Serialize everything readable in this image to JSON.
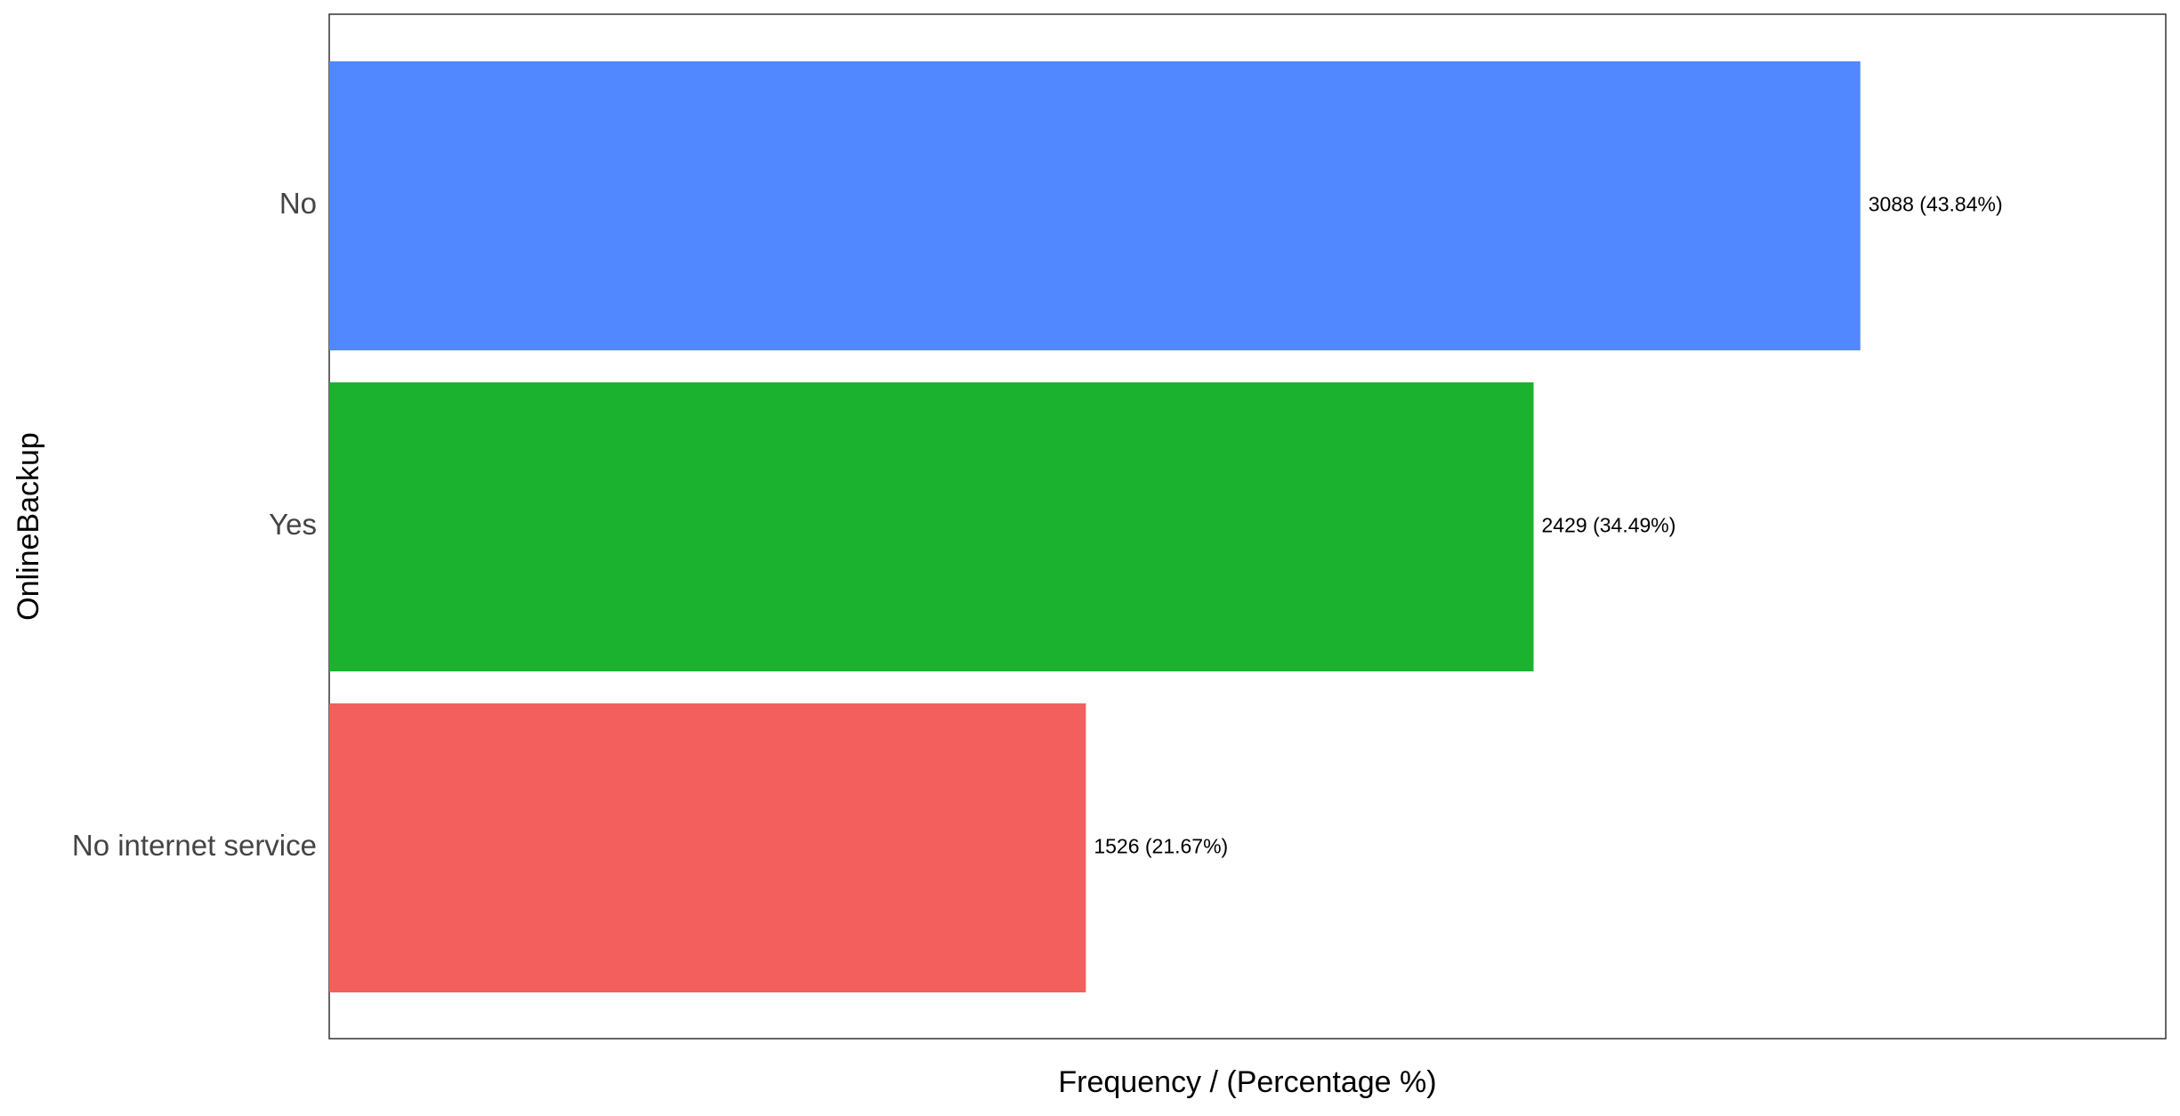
{
  "chart_data": {
    "type": "bar",
    "orientation": "horizontal",
    "xlabel": "Frequency / (Percentage %)",
    "ylabel": "OnlineBackup",
    "categories": [
      "No",
      "Yes",
      "No internet service"
    ],
    "values": [
      3088,
      2429,
      1526
    ],
    "data_labels": [
      "3088 (43.84%)",
      "2429 (34.49%)",
      "1526 (21.67%)"
    ],
    "colors": [
      "#5288FF",
      "#1AB22F",
      "#F25F5C"
    ],
    "xlim": [
      0,
      3704
    ],
    "grid": false,
    "legend": "none"
  }
}
